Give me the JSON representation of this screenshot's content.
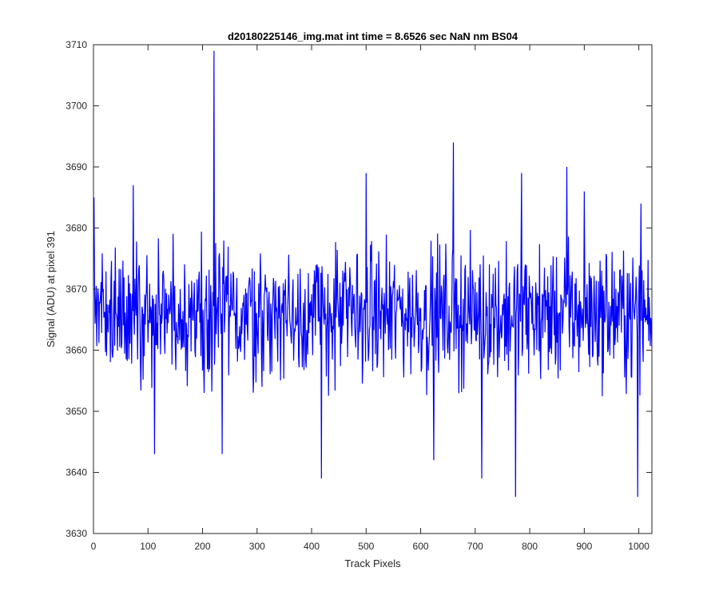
{
  "chart_data": {
    "type": "line",
    "title": "d20180225146_img.mat int time = 8.6526 sec  NaN nm BS04",
    "xlabel": "Track Pixels",
    "ylabel": "Signal (ADU) at pixel 391",
    "xlim": [
      0,
      1024
    ],
    "ylim": [
      3630,
      3710
    ],
    "xticks": [
      0,
      100,
      200,
      300,
      400,
      500,
      600,
      700,
      800,
      900,
      1000
    ],
    "yticks": [
      3630,
      3640,
      3650,
      3660,
      3670,
      3680,
      3690,
      3700,
      3710
    ],
    "grid": false,
    "legend": "none",
    "series": [
      {
        "color": "#0000ff",
        "x_start": 1,
        "x_step": 1,
        "count": 1024,
        "mean": 3666,
        "noise_range": [
          3643,
          3690
        ],
        "spikes": [
          {
            "x": 1,
            "y": 3685
          },
          {
            "x": 73,
            "y": 3687
          },
          {
            "x": 112,
            "y": 3643
          },
          {
            "x": 221,
            "y": 3709
          },
          {
            "x": 236,
            "y": 3643
          },
          {
            "x": 418,
            "y": 3639
          },
          {
            "x": 500,
            "y": 3689
          },
          {
            "x": 624,
            "y": 3642
          },
          {
            "x": 660,
            "y": 3694
          },
          {
            "x": 712,
            "y": 3639
          },
          {
            "x": 774,
            "y": 3636
          },
          {
            "x": 785,
            "y": 3689
          },
          {
            "x": 868,
            "y": 3690
          },
          {
            "x": 900,
            "y": 3686
          },
          {
            "x": 998,
            "y": 3636
          },
          {
            "x": 1004,
            "y": 3684
          }
        ]
      }
    ]
  }
}
